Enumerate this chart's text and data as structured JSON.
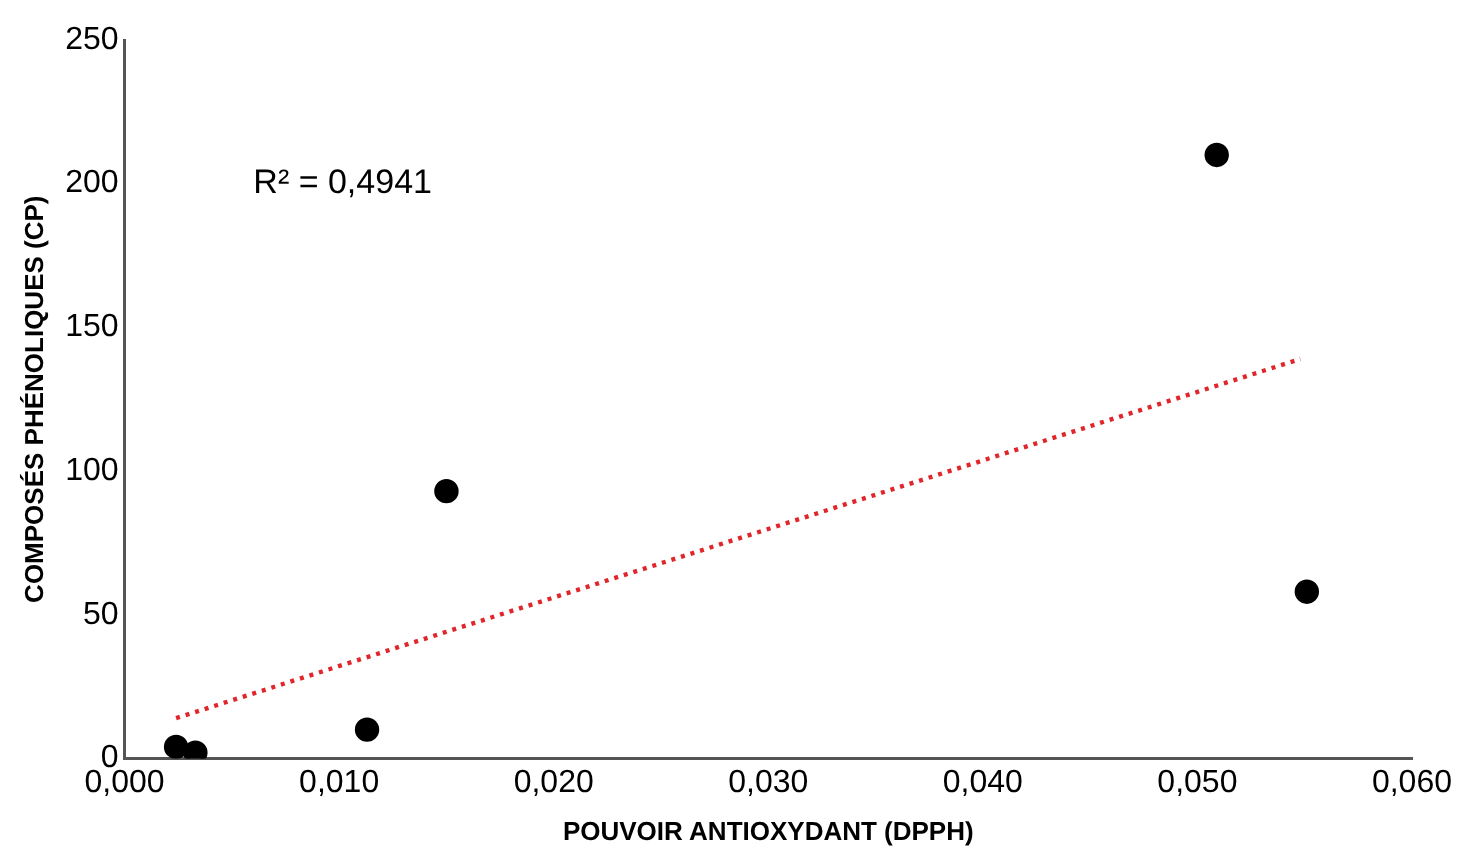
{
  "chart_data": {
    "type": "scatter",
    "xlabel": "POUVOIR ANTIOXYDANT (DPPH)",
    "ylabel": "COMPOSÉS PHÉNOLIQUES (CP)",
    "x": [
      0.0024,
      0.0033,
      0.0113,
      0.015,
      0.0509,
      0.0551
    ],
    "series": [
      {
        "type": "scatter",
        "color": "#000000",
        "marker": "circle",
        "values": [
          4,
          2,
          10,
          93,
          210,
          58
        ]
      },
      {
        "type": "line",
        "color": "#e0262a",
        "line_style": "dotted",
        "marker": "none",
        "x": [
          0.0024,
          0.0548
        ],
        "values": [
          14,
          139
        ]
      }
    ],
    "annotations": [
      "R² = 0,4941"
    ],
    "xlim": [
      0,
      0.06
    ],
    "xticks": [
      {
        "value": 0,
        "label": "0,000"
      },
      {
        "value": 0.01,
        "label": "0,010"
      },
      {
        "value": 0.02,
        "label": "0,020"
      },
      {
        "value": 0.03,
        "label": "0,030"
      },
      {
        "value": 0.04,
        "label": "0,040"
      },
      {
        "value": 0.05,
        "label": "0,050"
      },
      {
        "value": 0.06,
        "label": "0,060"
      }
    ],
    "ylim": [
      0,
      250
    ],
    "yticks": [
      0,
      50,
      100,
      150,
      200,
      250
    ],
    "grid": false,
    "legend": false
  }
}
